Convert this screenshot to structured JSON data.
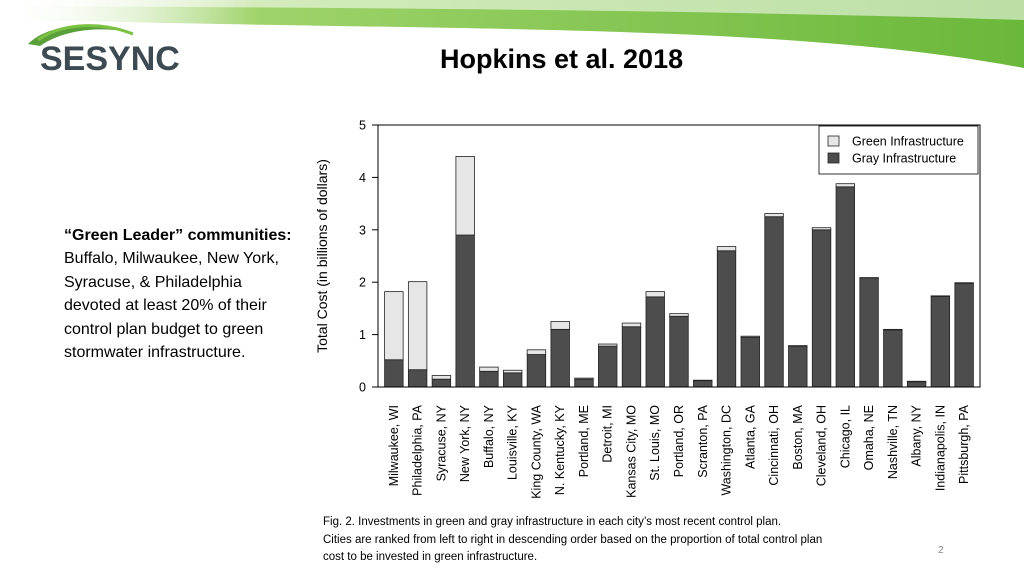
{
  "header": {
    "title": "Hopkins et al. 2018",
    "logo_text": "SESYNC",
    "accent_color": "#7cc242",
    "logo_arc_color": "#5aa03a"
  },
  "sidebar": {
    "bold_part": "“Green Leader” communities:",
    "body_part": " Buffalo, Milwaukee, New York, Syracuse, & Philadelphia devoted at least 20% of their control plan budget to green stormwater infrastructure."
  },
  "caption": {
    "line1": "Fig. 2. Investments in green and gray infrastructure in each city’s most recent control plan.",
    "line2": "Cities are ranked from left to right in descending order based on the proportion of total control plan",
    "line3": "cost to be invested in green infrastructure."
  },
  "page_number": "2",
  "chart_data": {
    "type": "bar",
    "stacked": true,
    "title": "",
    "xlabel": "",
    "ylabel": "Total Cost (in billions of dollars)",
    "ylim": [
      0,
      5
    ],
    "yticks": [
      "0",
      "1",
      "2",
      "3",
      "4",
      "5"
    ],
    "legend_position": "top-right",
    "categories": [
      "Milwaukee, WI",
      "Philadelphia, PA",
      "Syracuse, NY",
      "New York, NY",
      "Buffalo, NY",
      "Louisville, KY",
      "King County, WA",
      "N. Kentucky, KY",
      "Portland, ME",
      "Detroit, MI",
      "Kansas City, MO",
      "St. Louis, MO",
      "Portland, OR",
      "Scranton, PA",
      "Washington, DC",
      "Atlanta, GA",
      "Cincinnati, OH",
      "Boston, MA",
      "Cleveland, OH",
      "Chicago, IL",
      "Omaha, NE",
      "Nashville, TN",
      "Albany, NY",
      "Indianapolis, IN",
      "Pittsburgh, PA"
    ],
    "series": [
      {
        "name": "Gray Infrastructure",
        "color": "#4d4d4d",
        "values": [
          0.52,
          0.33,
          0.15,
          2.9,
          0.3,
          0.27,
          0.62,
          1.1,
          0.15,
          0.78,
          1.15,
          1.72,
          1.35,
          0.12,
          2.6,
          0.95,
          3.25,
          0.78,
          3.0,
          3.82,
          2.07,
          1.09,
          0.1,
          1.73,
          1.98
        ]
      },
      {
        "name": "Green Infrastructure",
        "color": "#e6e6e6",
        "values": [
          1.3,
          1.68,
          0.07,
          1.5,
          0.08,
          0.05,
          0.09,
          0.15,
          0.02,
          0.04,
          0.07,
          0.1,
          0.05,
          0.01,
          0.08,
          0.02,
          0.06,
          0.01,
          0.04,
          0.06,
          0.02,
          0.01,
          0.01,
          0.01,
          0.01
        ]
      }
    ]
  }
}
